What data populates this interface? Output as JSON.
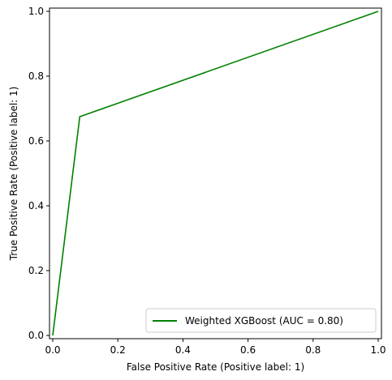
{
  "chart_data": {
    "type": "line",
    "title": "",
    "xlabel": "False Positive Rate (Positive label: 1)",
    "ylabel": "True Positive Rate (Positive label: 1)",
    "xlim": [
      -0.01,
      1.01
    ],
    "ylim": [
      -0.01,
      1.01
    ],
    "xticks": [
      0.0,
      0.2,
      0.4,
      0.6,
      0.8,
      1.0
    ],
    "yticks": [
      0.0,
      0.2,
      0.4,
      0.6,
      0.8,
      1.0
    ],
    "xtick_labels": [
      "0.0",
      "0.2",
      "0.4",
      "0.6",
      "0.8",
      "1.0"
    ],
    "ytick_labels": [
      "0.0",
      "0.2",
      "0.4",
      "0.6",
      "0.8",
      "1.0"
    ],
    "grid": false,
    "legend_position": "lower-right",
    "series": [
      {
        "name": "Weighted XGBoost (AUC = 0.80)",
        "color": "#008000",
        "x": [
          0.0,
          0.083,
          1.0
        ],
        "y": [
          0.0,
          0.675,
          1.0
        ]
      }
    ]
  }
}
